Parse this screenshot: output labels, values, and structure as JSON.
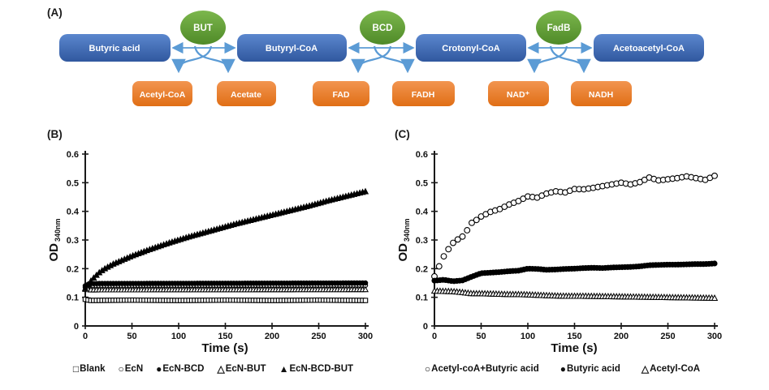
{
  "panels": {
    "a_label": "(A)",
    "b_label": "(B)",
    "c_label": "(C)"
  },
  "pathway": {
    "metabolites": [
      {
        "label": "Butyric acid"
      },
      {
        "label": "Butyryl-CoA"
      },
      {
        "label": "Crotonyl-CoA"
      },
      {
        "label": "Acetoacetyl-CoA"
      }
    ],
    "enzymes": [
      {
        "label": "BUT"
      },
      {
        "label": "BCD"
      },
      {
        "label": "FadB"
      }
    ],
    "cofactors": [
      {
        "label": "Acetyl-CoA"
      },
      {
        "label": "Acetate"
      },
      {
        "label": "FAD"
      },
      {
        "label": "FADH"
      },
      {
        "label": "NAD⁺"
      },
      {
        "label": "NADH"
      }
    ],
    "colors": {
      "metabolite_blue": "#3d67b1",
      "enzyme_green": "#69ac3c",
      "cofactor_orange": "#e87f2b",
      "arrow_blue": "#5b9bd5"
    }
  },
  "chart_data": [
    {
      "type": "scatter",
      "panel": "B",
      "title": "",
      "xlabel": "Time (s)",
      "ylabel": "OD",
      "ylabel_sub": "340nm",
      "xlim": [
        0,
        300
      ],
      "ylim": [
        0,
        0.6
      ],
      "xticks": [
        0,
        50,
        100,
        150,
        200,
        250,
        300
      ],
      "xtick_labels": [
        "0",
        "50",
        "100",
        "150",
        "200",
        "250",
        "300"
      ],
      "yticks": [
        0,
        0.1,
        0.2,
        0.3,
        0.4,
        0.5,
        0.6
      ],
      "ytick_labels": [
        "0",
        "0.1",
        "0.2",
        "0.3",
        "0.4",
        "0.5",
        "0.6"
      ],
      "grid": false,
      "legend_position": "bottom",
      "series": [
        {
          "name": "Blank",
          "marker": "square-open",
          "marker_step": 3,
          "size": 2.7,
          "x": [
            0,
            5,
            50,
            100,
            150,
            200,
            250,
            300
          ],
          "y": [
            0.093,
            0.089,
            0.09,
            0.089,
            0.09,
            0.089,
            0.09,
            0.089
          ]
        },
        {
          "name": "EcN",
          "marker": "circle-open",
          "marker_step": 3,
          "size": 2.7,
          "x": [
            0,
            5,
            300
          ],
          "y": [
            0.135,
            0.14,
            0.142
          ]
        },
        {
          "name": "EcN-BCD",
          "marker": "circle-filled",
          "marker_step": 3,
          "size": 2.7,
          "x": [
            0,
            5,
            300
          ],
          "y": [
            0.14,
            0.148,
            0.15
          ]
        },
        {
          "name": "EcN-BUT",
          "marker": "triangle-open",
          "marker_step": 3,
          "size": 2.7,
          "x": [
            0,
            5,
            300
          ],
          "y": [
            0.128,
            0.126,
            0.127
          ]
        },
        {
          "name": "EcN-BCD-BUT",
          "marker": "triangle-filled",
          "marker_step": 3,
          "size": 2.8,
          "x": [
            0,
            5,
            10,
            15,
            20,
            30,
            40,
            50,
            60,
            70,
            80,
            90,
            100,
            110,
            120,
            130,
            140,
            150,
            160,
            170,
            180,
            190,
            200,
            210,
            220,
            230,
            240,
            250,
            260,
            270,
            280,
            290,
            300
          ],
          "y": [
            0.131,
            0.153,
            0.171,
            0.186,
            0.198,
            0.216,
            0.23,
            0.244,
            0.256,
            0.268,
            0.279,
            0.29,
            0.3,
            0.31,
            0.319,
            0.328,
            0.337,
            0.346,
            0.355,
            0.363,
            0.371,
            0.379,
            0.387,
            0.395,
            0.403,
            0.411,
            0.419,
            0.428,
            0.437,
            0.445,
            0.453,
            0.461,
            0.469
          ]
        }
      ]
    },
    {
      "type": "scatter",
      "panel": "C",
      "title": "",
      "xlabel": "Time (s)",
      "ylabel": "OD",
      "ylabel_sub": "340nm",
      "xlim": [
        0,
        300
      ],
      "ylim": [
        0,
        0.6
      ],
      "xticks": [
        0,
        50,
        100,
        150,
        200,
        250,
        300
      ],
      "xtick_labels": [
        "0",
        "50",
        "100",
        "150",
        "200",
        "250",
        "300"
      ],
      "yticks": [
        0,
        0.1,
        0.2,
        0.3,
        0.4,
        0.5,
        0.6
      ],
      "ytick_labels": [
        "0",
        "0.1",
        "0.2",
        "0.3",
        "0.4",
        "0.5",
        "0.6"
      ],
      "grid": false,
      "legend_position": "bottom",
      "series": [
        {
          "name": "Acetyl-coA+Butyric acid",
          "marker": "circle-open",
          "marker_step": 5,
          "size": 3.4,
          "x": [
            0,
            5,
            10,
            15,
            20,
            25,
            30,
            35,
            40,
            45,
            50,
            60,
            70,
            80,
            90,
            100,
            110,
            120,
            130,
            140,
            150,
            160,
            170,
            180,
            190,
            200,
            210,
            220,
            230,
            240,
            250,
            260,
            270,
            280,
            290,
            300
          ],
          "y": [
            0.173,
            0.208,
            0.243,
            0.268,
            0.29,
            0.302,
            0.312,
            0.334,
            0.36,
            0.37,
            0.382,
            0.398,
            0.408,
            0.424,
            0.436,
            0.452,
            0.448,
            0.462,
            0.47,
            0.466,
            0.478,
            0.477,
            0.482,
            0.488,
            0.494,
            0.5,
            0.494,
            0.502,
            0.518,
            0.508,
            0.512,
            0.516,
            0.522,
            0.516,
            0.51,
            0.524
          ]
        },
        {
          "name": "Butyric acid",
          "marker": "circle-filled",
          "marker_step": 3,
          "size": 3.0,
          "x": [
            0,
            10,
            20,
            30,
            40,
            50,
            60,
            70,
            80,
            90,
            100,
            110,
            120,
            130,
            140,
            150,
            160,
            170,
            180,
            190,
            200,
            210,
            220,
            230,
            240,
            250,
            260,
            270,
            280,
            290,
            300
          ],
          "y": [
            0.158,
            0.161,
            0.156,
            0.159,
            0.172,
            0.184,
            0.186,
            0.188,
            0.191,
            0.193,
            0.2,
            0.199,
            0.196,
            0.197,
            0.199,
            0.2,
            0.202,
            0.203,
            0.202,
            0.204,
            0.205,
            0.206,
            0.208,
            0.212,
            0.213,
            0.214,
            0.214,
            0.215,
            0.216,
            0.216,
            0.218
          ]
        },
        {
          "name": "Acetyl-CoA",
          "marker": "triangle-open",
          "marker_step": 3,
          "size": 2.9,
          "x": [
            0,
            10,
            20,
            30,
            40,
            50,
            60,
            70,
            80,
            90,
            100,
            120,
            140,
            160,
            180,
            200,
            220,
            240,
            260,
            280,
            300
          ],
          "y": [
            0.122,
            0.121,
            0.12,
            0.117,
            0.113,
            0.113,
            0.112,
            0.111,
            0.11,
            0.11,
            0.109,
            0.106,
            0.104,
            0.104,
            0.103,
            0.102,
            0.101,
            0.1,
            0.099,
            0.098,
            0.097
          ]
        }
      ]
    }
  ]
}
